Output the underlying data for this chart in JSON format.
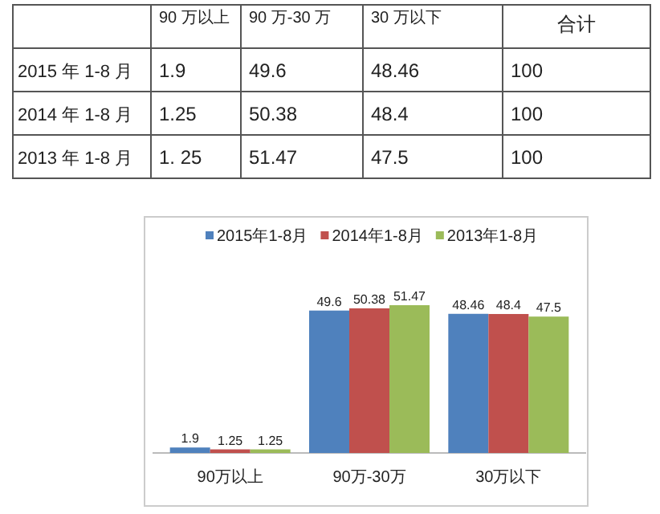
{
  "chart_data": [
    {
      "type": "other",
      "categories": [
        "90 万以上",
        "90 万-30 万",
        "30 万以下",
        "合计"
      ],
      "y_categories": [
        "2015 年 1-8 月",
        "2014 年 1-8 月",
        "2013 年 1-8 月"
      ],
      "cell_labels": [
        [
          "1.9",
          "49.6",
          "48.46",
          "100"
        ],
        [
          "1.25",
          "50.38",
          "48.4",
          "100"
        ],
        [
          "1. 25",
          "51.47",
          "47.5",
          "100"
        ]
      ]
    },
    {
      "type": "bar",
      "categories": [
        "90万以上",
        "90万-30万",
        "30万以下"
      ],
      "series": [
        {
          "name": "2015年1-8月",
          "color": "#4f81bd",
          "values": [
            1.9,
            49.6,
            48.46
          ]
        },
        {
          "name": "2014年1-8月",
          "color": "#c0504d",
          "values": [
            1.25,
            50.38,
            48.4
          ]
        },
        {
          "name": "2013年1-8月",
          "color": "#9bbb59",
          "values": [
            1.25,
            51.47,
            47.5
          ]
        }
      ],
      "data_labels": true,
      "legend": "top"
    }
  ]
}
